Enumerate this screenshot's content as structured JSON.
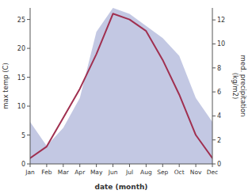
{
  "chart_data": {
    "type": "line",
    "categories": [
      "Jan",
      "Feb",
      "Mar",
      "Apr",
      "May",
      "Jun",
      "Jul",
      "Aug",
      "Sep",
      "Oct",
      "Nov",
      "Dec"
    ],
    "series": [
      {
        "type": "area",
        "axis": "y2",
        "color": "#b8bede",
        "values": [
          3.5,
          1.5,
          3.0,
          5.5,
          11.0,
          13.0,
          12.5,
          11.5,
          10.5,
          9.0,
          5.5,
          3.5
        ]
      },
      {
        "type": "line",
        "color": "#a03050",
        "values": [
          1,
          3,
          8,
          13,
          19,
          26,
          25,
          23,
          18,
          12,
          5,
          1
        ]
      }
    ],
    "xlabel": "date (month)",
    "ylabel": "max temp (C)",
    "y2label": "med. precipitation\n(kg/m2)",
    "ylim": [
      0,
      27
    ],
    "yticks": [
      0,
      5,
      10,
      15,
      20,
      25
    ],
    "y2lim": [
      0,
      13
    ],
    "y2ticks": [
      0,
      2,
      4,
      6,
      8,
      10,
      12
    ]
  }
}
